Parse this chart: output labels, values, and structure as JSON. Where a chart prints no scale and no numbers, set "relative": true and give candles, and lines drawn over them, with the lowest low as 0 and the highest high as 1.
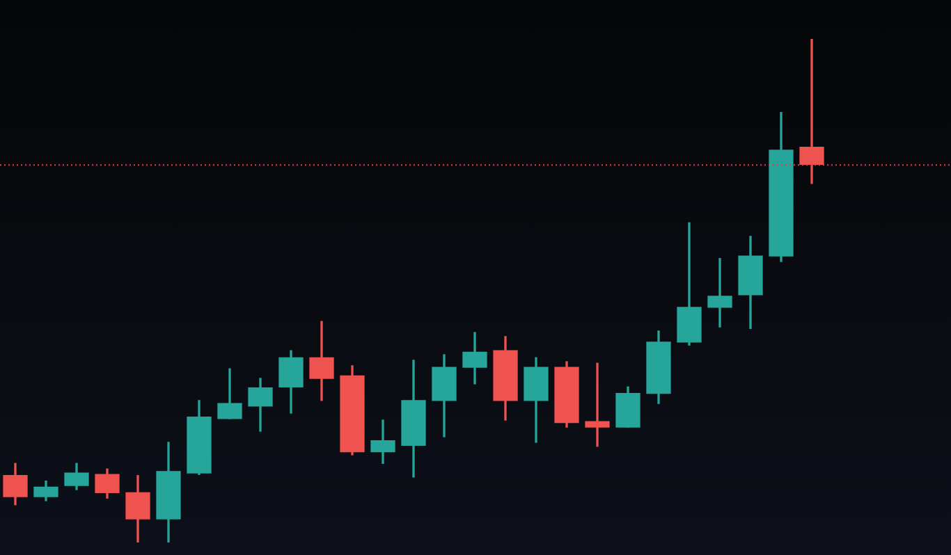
{
  "chart_data": {
    "type": "candlestick",
    "relative": true,
    "categories": [
      null,
      null,
      null,
      null,
      null,
      null,
      null,
      null,
      null,
      null,
      null,
      null,
      null,
      null,
      null,
      null,
      null,
      null,
      null,
      null,
      null,
      null,
      null,
      null,
      null,
      null,
      null
    ],
    "ohlc": [
      [
        0.133,
        0.157,
        0.075,
        0.091
      ],
      [
        0.091,
        0.122,
        0.083,
        0.11
      ],
      [
        0.113,
        0.157,
        0.105,
        0.138
      ],
      [
        0.135,
        0.146,
        0.088,
        0.099
      ],
      [
        0.099,
        0.133,
        0,
        0.047
      ],
      [
        0.047,
        0.199,
        0,
        0.141
      ],
      [
        0.138,
        0.282,
        0.135,
        0.249
      ],
      [
        0.246,
        0.345,
        0.246,
        0.276
      ],
      [
        0.271,
        0.326,
        0.221,
        0.307
      ],
      [
        0.309,
        0.381,
        0.257,
        0.367
      ],
      [
        0.367,
        0.439,
        0.282,
        0.326
      ],
      [
        0.331,
        0.351,
        0.174,
        0.18
      ],
      [
        0.18,
        0.243,
        0.157,
        0.202
      ],
      [
        0.193,
        0.362,
        0.13,
        0.282
      ],
      [
        0.282,
        0.373,
        0.21,
        0.348
      ],
      [
        0.348,
        0.417,
        0.315,
        0.378
      ],
      [
        0.381,
        0.409,
        0.243,
        0.282
      ],
      [
        0.282,
        0.367,
        0.199,
        0.348
      ],
      [
        0.348,
        0.359,
        0.229,
        0.238
      ],
      [
        0.24,
        0.356,
        0.191,
        0.229
      ],
      [
        0.229,
        0.309,
        0.229,
        0.296
      ],
      [
        0.296,
        0.42,
        0.276,
        0.398
      ],
      [
        0.398,
        0.635,
        0.392,
        0.467
      ],
      [
        0.467,
        0.564,
        0.428,
        0.489
      ],
      [
        0.492,
        0.608,
        0.425,
        0.569
      ],
      [
        0.569,
        0.854,
        0.558,
        0.779
      ],
      [
        0.785,
        1,
        0.713,
        0.751
      ]
    ],
    "colors": [
      "#ef5350",
      "#26a69a",
      "#26a69a",
      "#ef5350",
      "#ef5350",
      "#26a69a",
      "#26a69a",
      "#26a69a",
      "#26a69a",
      "#26a69a",
      "#ef5350",
      "#ef5350",
      "#26a69a",
      "#26a69a",
      "#26a69a",
      "#26a69a",
      "#ef5350",
      "#26a69a",
      "#ef5350",
      "#ef5350",
      "#26a69a",
      "#26a69a",
      "#26a69a",
      "#26a69a",
      "#26a69a",
      "#26a69a",
      "#ef5350"
    ],
    "ref_lines": [
      {
        "axis": "y",
        "value": 0.751,
        "color": "#f23645",
        "line_style": "dotted"
      }
    ]
  }
}
